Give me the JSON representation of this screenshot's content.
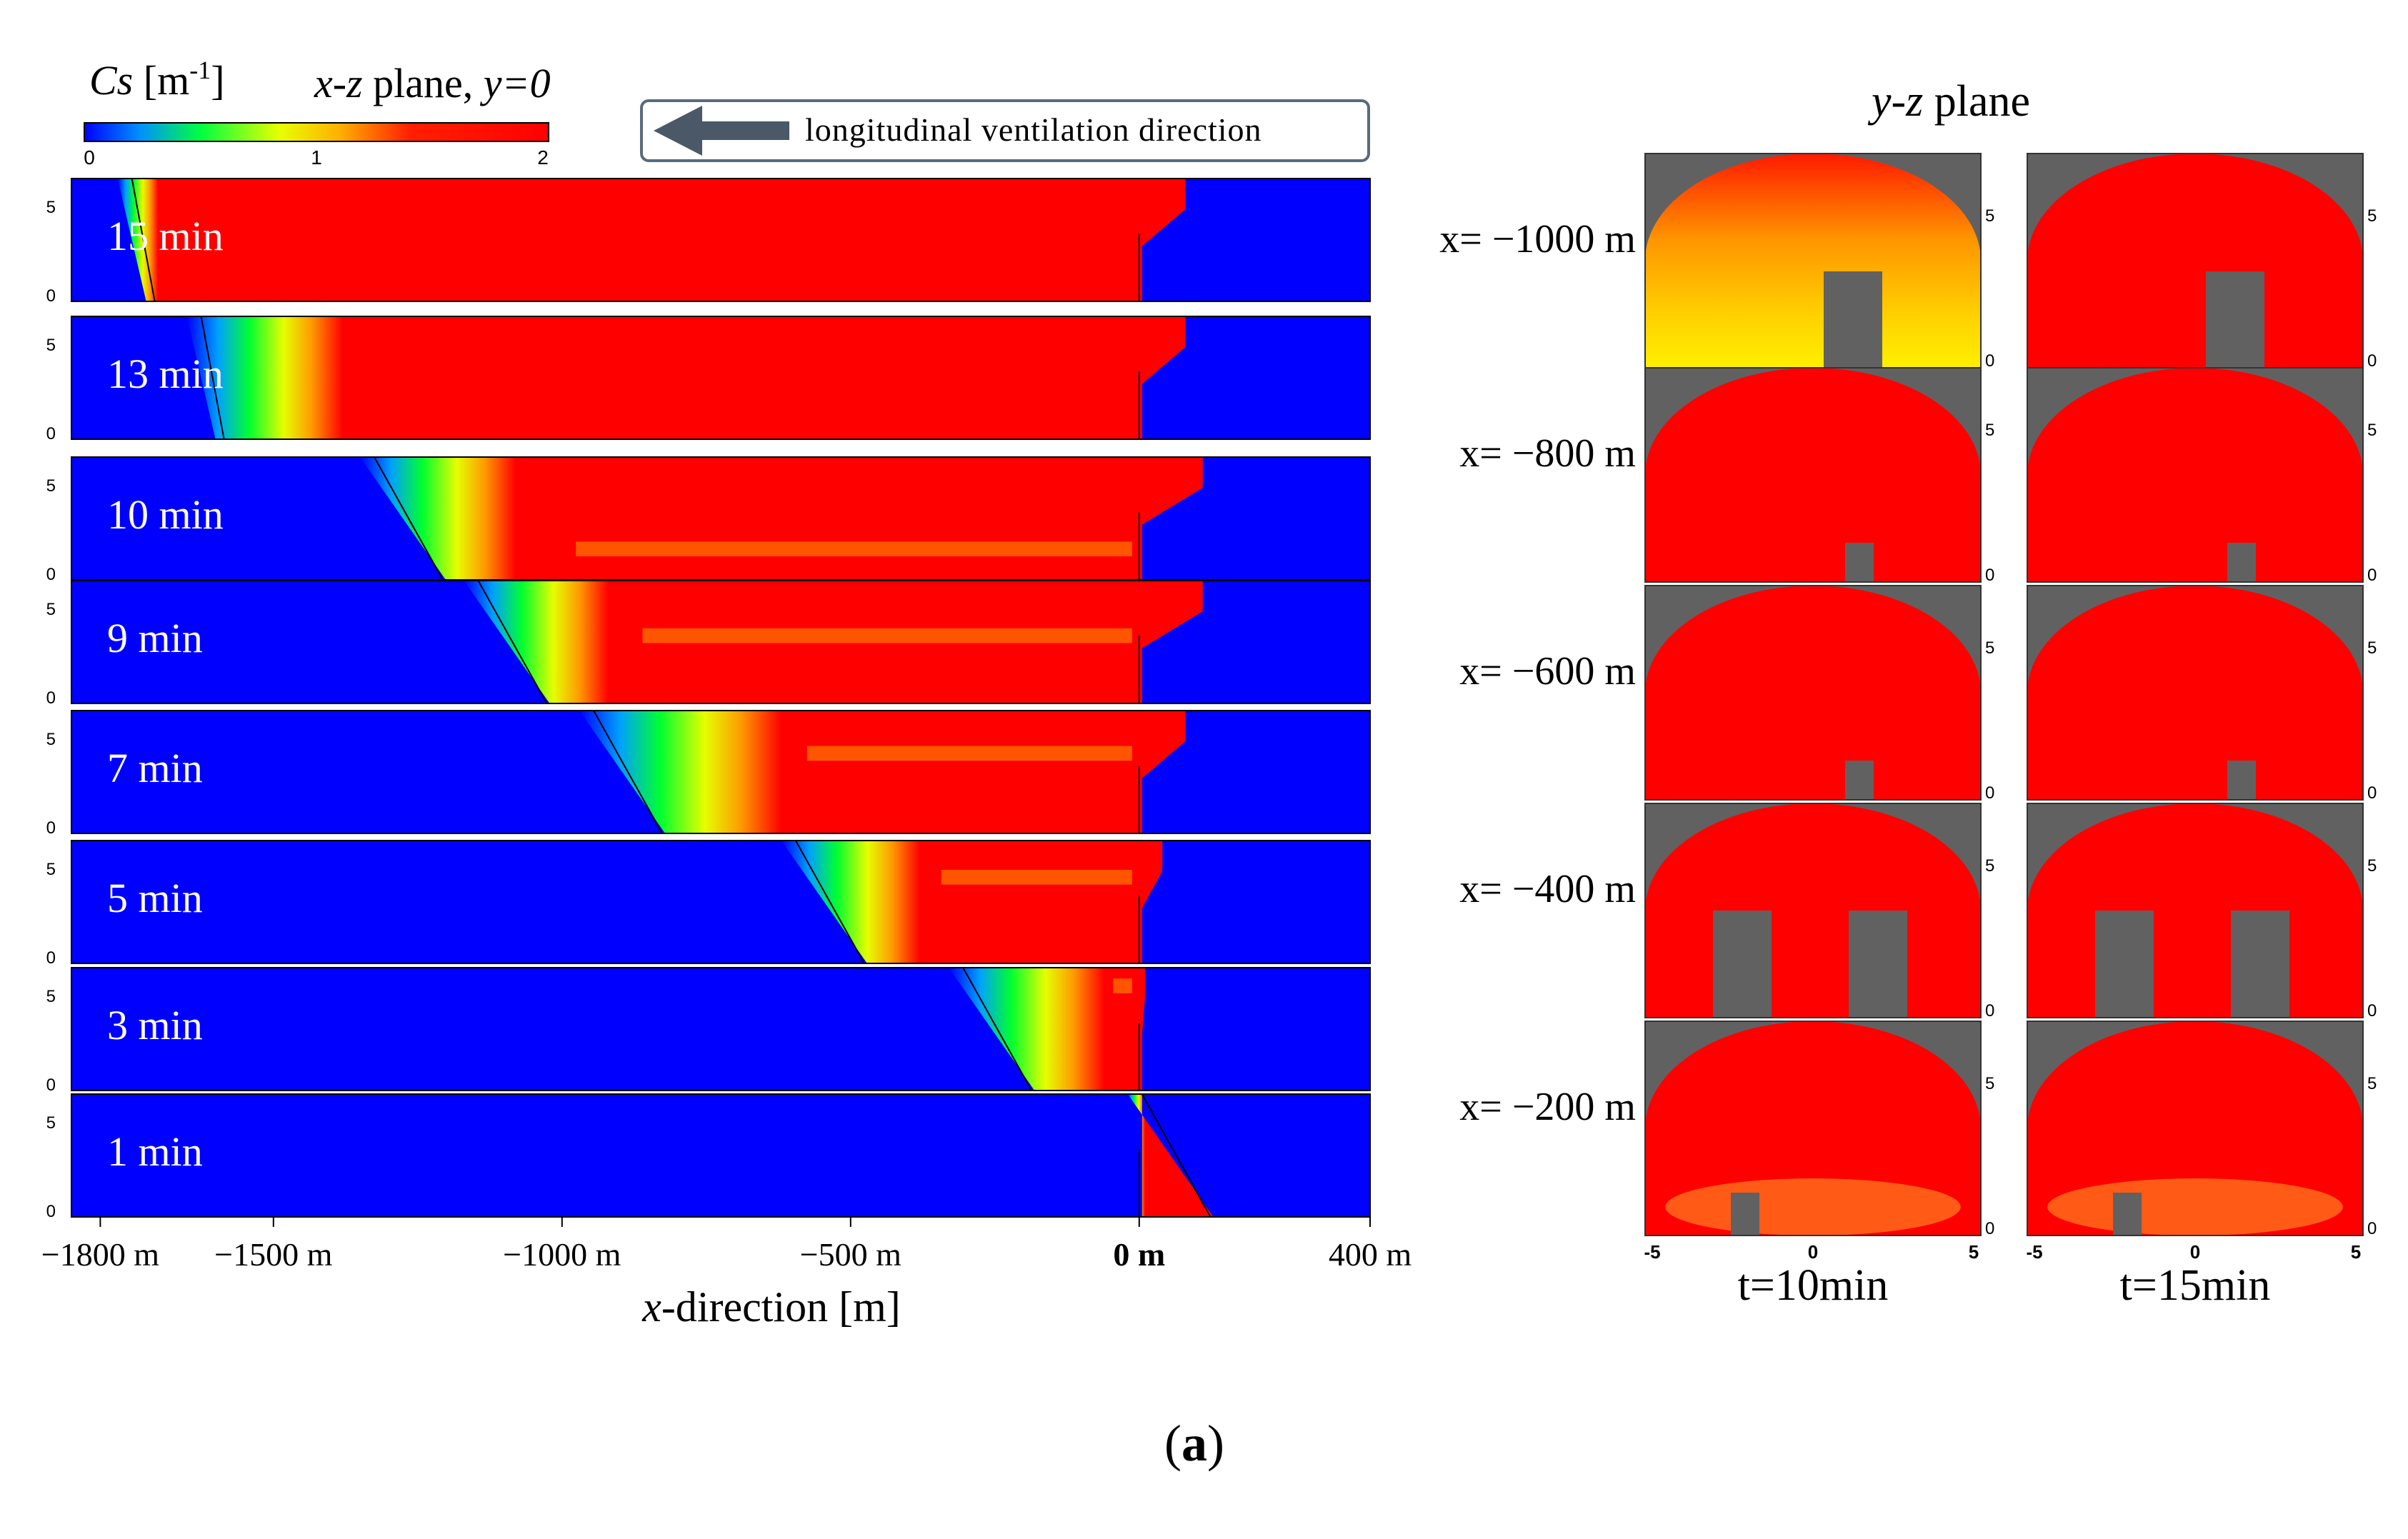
{
  "colorbar": {
    "quantity": "Cs",
    "unit": "[m",
    "unit_exp": "-1",
    "unit_close": "]",
    "ticks": [
      "0",
      "1",
      "2"
    ],
    "range": [
      0,
      2
    ],
    "stops": [
      "#0000ff",
      "#00c8ff",
      "#00ff00",
      "#ffff00",
      "#ff8c00",
      "#ff0000"
    ]
  },
  "plane_title": {
    "axes": "x-z",
    "rest": "plane,",
    "coord": "y=0"
  },
  "ventilation": {
    "label": "longitudinal ventilation direction"
  },
  "yz_title": {
    "axes": "y-z",
    "rest": "plane"
  },
  "figure_label": {
    "open": "(",
    "letter": "a",
    "close": ")"
  },
  "chart_data": [
    {
      "type": "heatmap",
      "plane": "x-z plane, y=0",
      "xlabel_italic": "x",
      "xlabel_rest": "-direction [m]",
      "xlim": [
        -1850,
        400
      ],
      "x_ticks": [
        {
          "value": -1800,
          "label": "−1800 m"
        },
        {
          "value": -1500,
          "label": "−1500 m"
        },
        {
          "value": -1000,
          "label": "−1000 m"
        },
        {
          "value": -500,
          "label": "−500 m"
        },
        {
          "value": 0,
          "label": "0 m"
        },
        {
          "value": 400,
          "label": "400 m"
        }
      ],
      "z_ticks": [
        "5",
        "0"
      ],
      "panels": [
        {
          "time": "15 min",
          "front_x": -1770,
          "red_x": -1700,
          "fire_x": 0,
          "down_x": 80,
          "red_depth": 1.0
        },
        {
          "time": "13 min",
          "front_x": -1650,
          "red_x": -1380,
          "fire_x": 0,
          "down_x": 80,
          "red_depth": 1.0
        },
        {
          "time": "10 min",
          "front_x": -1350,
          "red_x": -1080,
          "fire_x": 0,
          "down_x": 110,
          "red_depth": 0.7
        },
        {
          "time": "9 min",
          "front_x": -1170,
          "red_x": -920,
          "fire_x": 0,
          "down_x": 110,
          "red_depth": 0.4
        },
        {
          "time": "7 min",
          "front_x": -970,
          "red_x": -620,
          "fire_x": 0,
          "down_x": 80,
          "red_depth": 0.3
        },
        {
          "time": "5 min",
          "front_x": -620,
          "red_x": -380,
          "fire_x": 0,
          "down_x": 40,
          "red_depth": 0.25
        },
        {
          "time": "3 min",
          "front_x": -330,
          "red_x": -60,
          "fire_x": 0,
          "down_x": 10,
          "red_depth": 0.1
        },
        {
          "time": "1 min",
          "front_x": -20,
          "red_x": 10,
          "fire_x": 0,
          "down_x": 5,
          "red_depth": 0.0
        }
      ]
    },
    {
      "type": "heatmap",
      "plane": "y-z plane",
      "y_ticks": [
        "-5",
        "0",
        "5"
      ],
      "z_ticks": [
        "5",
        "0"
      ],
      "columns": [
        "t=10min",
        "t=15min"
      ],
      "rows": [
        {
          "x_label": "x= −1000 m",
          "t10": "yellow-gradient, one vehicle",
          "t15": "red, one vehicle"
        },
        {
          "x_label": "x= −800 m",
          "t10": "red, small vehicle",
          "t15": "red, small vehicle"
        },
        {
          "x_label": "x= −600 m",
          "t10": "red, small vehicle",
          "t15": "red, small vehicle"
        },
        {
          "x_label": "x= −400 m",
          "t10": "red, two vehicles",
          "t15": "red, two vehicles"
        },
        {
          "x_label": "x= −200 m",
          "t10": "red with orange floor layer",
          "t15": "red with orange floor layer"
        }
      ]
    }
  ]
}
